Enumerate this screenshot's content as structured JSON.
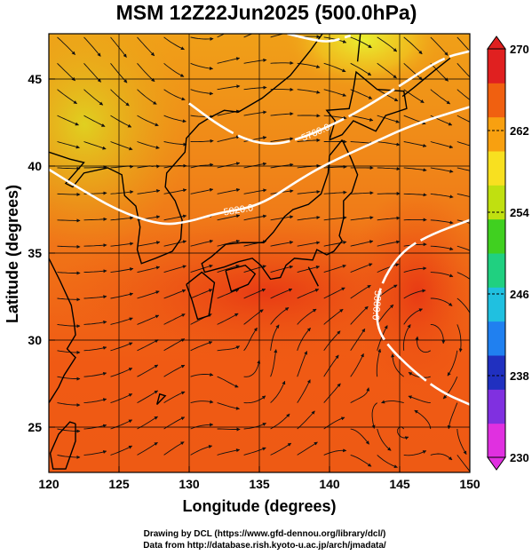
{
  "chart_data": {
    "type": "heatmap",
    "title": "MSM 12Z22Jun2025 (500.0hPa)",
    "xlabel": "Longitude (degrees)",
    "ylabel": "Latitude  (degrees)",
    "xlim": [
      120,
      150
    ],
    "ylim": [
      22.4,
      47.6
    ],
    "x_ticks": [
      "120",
      "125",
      "130",
      "135",
      "140",
      "145",
      "150"
    ],
    "y_ticks": [
      "25",
      "30",
      "35",
      "40",
      "45"
    ],
    "grid": true,
    "colorbar": {
      "min": 230,
      "max": 270,
      "ticks": [
        "230",
        "238",
        "246",
        "254",
        "262",
        "270"
      ],
      "colors": [
        "#e030e0",
        "#8030e0",
        "#2030c0",
        "#2080f0",
        "#20c0e0",
        "#20d080",
        "#40d020",
        "#c0e010",
        "#f8e020",
        "#f8a010",
        "#f06010",
        "#e02020"
      ]
    },
    "contours": [
      {
        "label": "5820.0",
        "points": [
          [
            120,
            39.8
          ],
          [
            122,
            38.8
          ],
          [
            125,
            37.4
          ],
          [
            128,
            36.6
          ],
          [
            130,
            36.8
          ],
          [
            132,
            37.3
          ],
          [
            135,
            37.7
          ],
          [
            138,
            39.3
          ],
          [
            140,
            40.2
          ],
          [
            143,
            41.3
          ],
          [
            146,
            42.4
          ],
          [
            150,
            43.4
          ]
        ]
      },
      {
        "label": "5760.0",
        "points": [
          [
            130,
            43.6
          ],
          [
            132,
            42.4
          ],
          [
            134,
            41.5
          ],
          [
            136,
            41.2
          ],
          [
            138,
            41.6
          ],
          [
            140,
            42.3
          ],
          [
            142,
            43.1
          ],
          [
            145,
            44.6
          ],
          [
            148,
            46.2
          ],
          [
            150,
            46.6
          ]
        ]
      },
      {
        "label": "5880.0",
        "points": [
          [
            150,
            36.9
          ],
          [
            147,
            36.0
          ],
          [
            145,
            35.0
          ],
          [
            143.5,
            33.0
          ],
          [
            143.3,
            31.0
          ],
          [
            144,
            29.8
          ],
          [
            146,
            28.2
          ],
          [
            148,
            27.0
          ],
          [
            150,
            26.3
          ]
        ]
      },
      {
        "label": "",
        "points": [
          [
            137,
            47.6
          ],
          [
            138.5,
            47.3
          ],
          [
            140,
            47.1
          ],
          [
            141.5,
            47.5
          ]
        ]
      }
    ],
    "annotations": [
      "5760.0",
      "5820.0",
      "5880.0"
    ]
  },
  "credits": {
    "line1": "Drawing by DCL (https://www.gfd-dennou.org/library/dcl/)",
    "line2": "Data from http://database.rish.kyoto-u.ac.jp/arch/jmadata/"
  }
}
